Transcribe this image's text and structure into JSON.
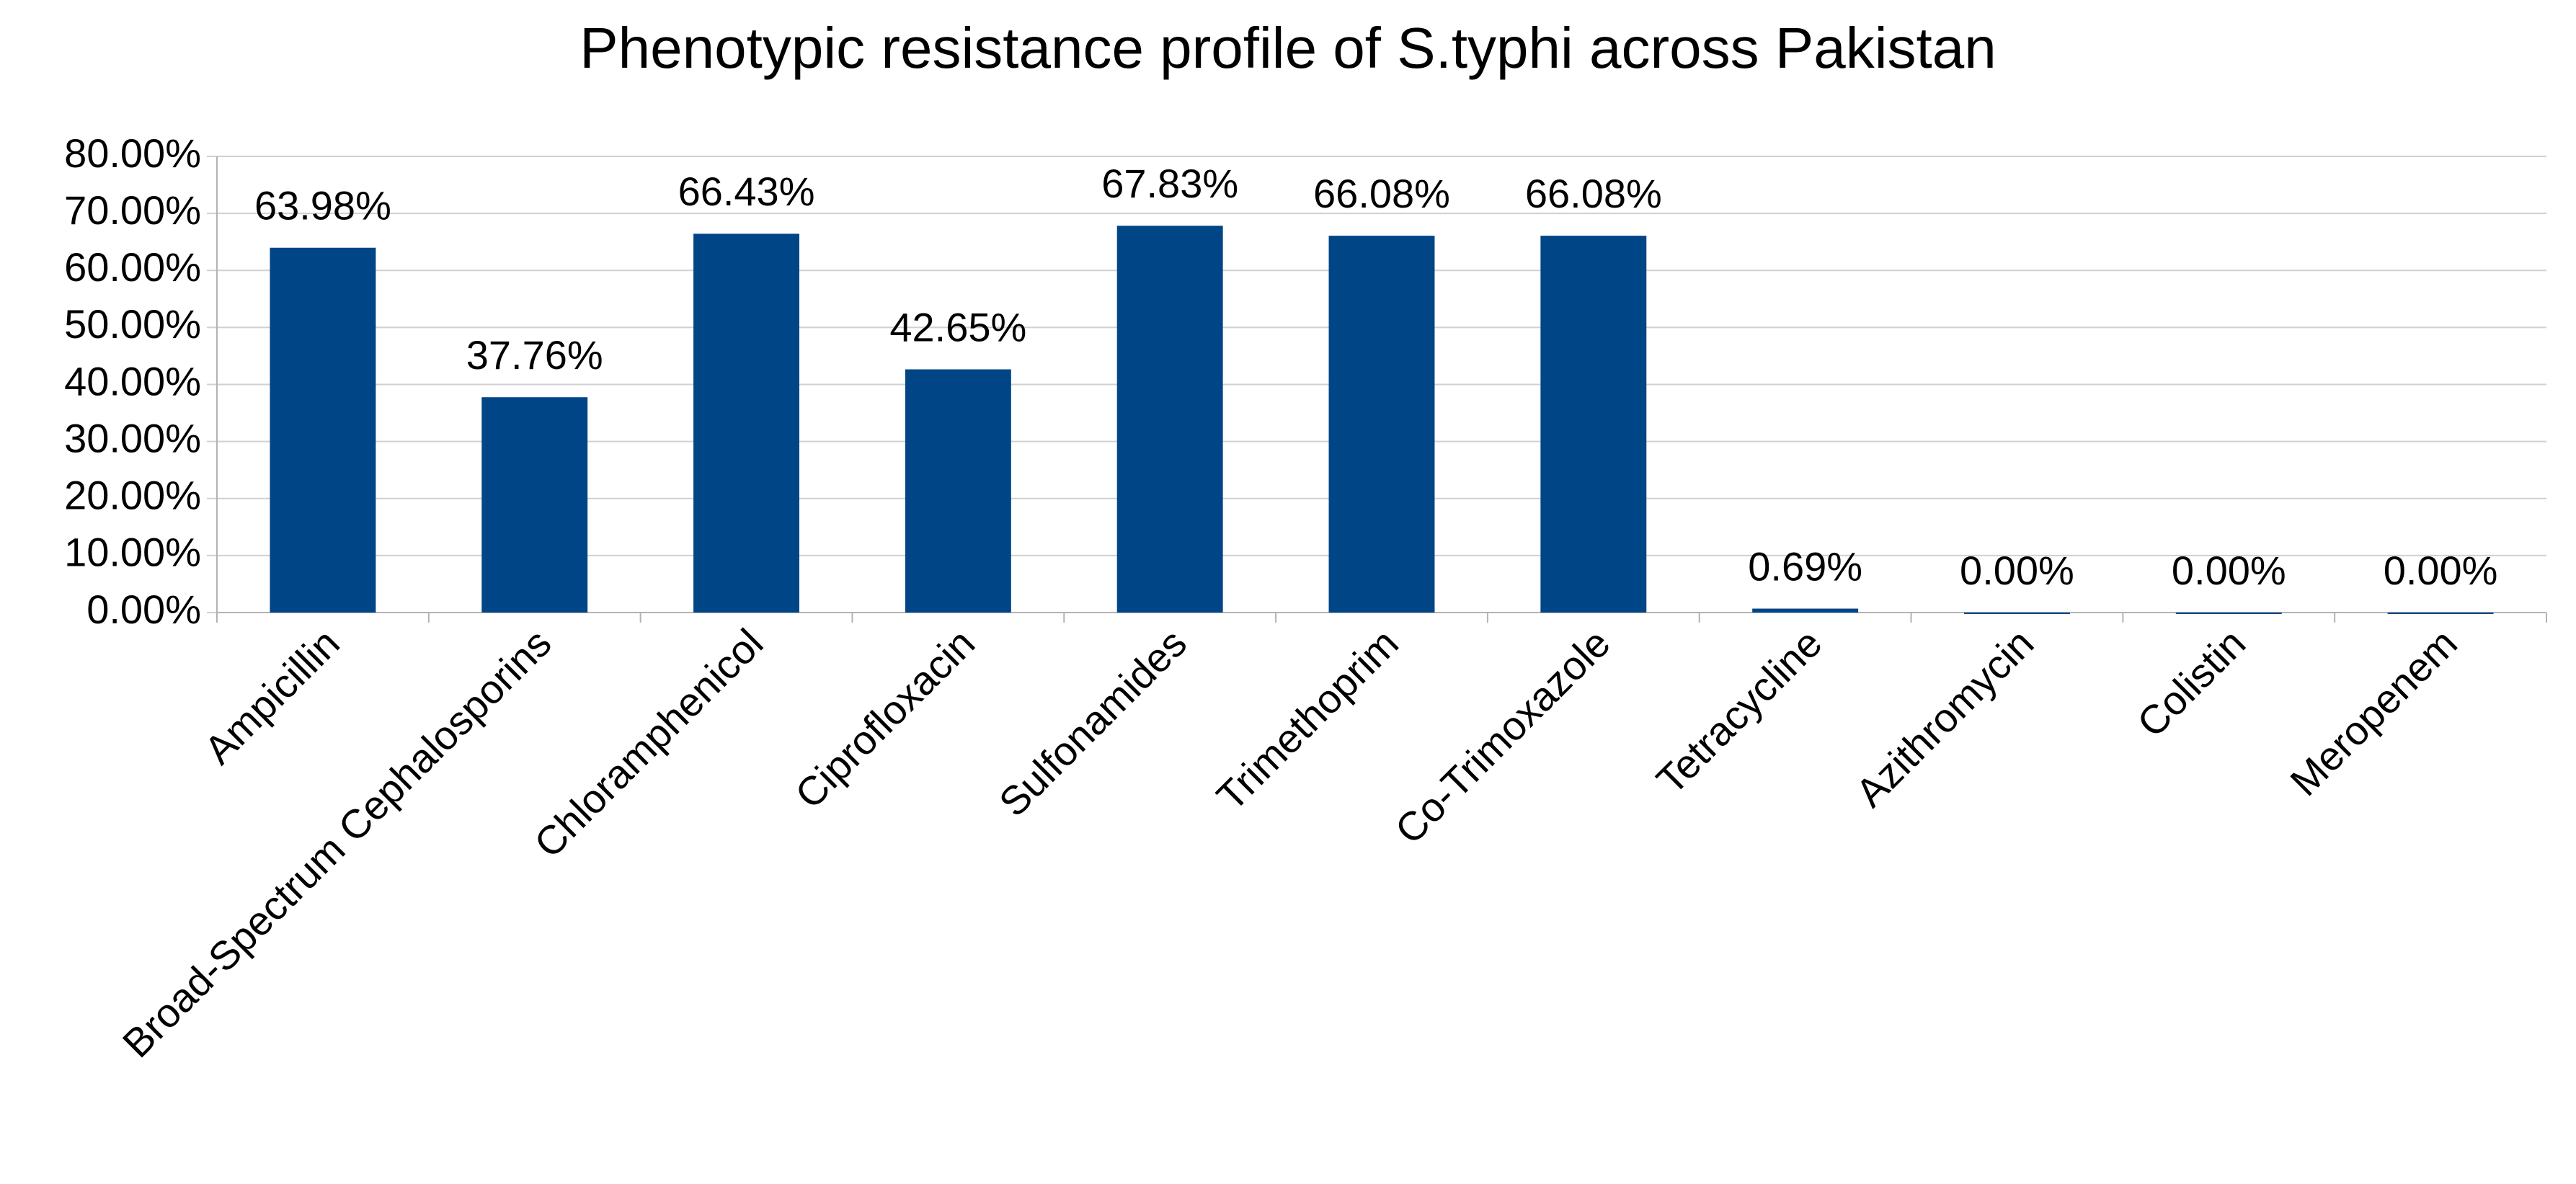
{
  "chart_data": {
    "type": "bar",
    "title": "Phenotypic resistance profile of S.typhi across Pakistan",
    "categories": [
      "Ampicillin",
      "Broad-Spectrum Cephalosporins",
      "Chloramphenicol",
      "Ciprofloxacin",
      "Sulfonamides",
      "Trimethoprim",
      "Co-Trimoxazole",
      "Tetracycline",
      "Azithromycin",
      "Colistin",
      "Meropenem"
    ],
    "values": [
      63.98,
      37.76,
      66.43,
      42.65,
      67.83,
      66.08,
      66.08,
      0.69,
      0,
      0,
      0
    ],
    "value_labels": [
      "63.98%",
      "37.76%",
      "66.43%",
      "42.65%",
      "67.83%",
      "66.08%",
      "66.08%",
      "0.69%",
      "0.00%",
      "0.00%",
      "0.00%"
    ],
    "color": "#004586",
    "ylim": [
      0,
      80
    ],
    "yticks": [
      {
        "value": 0,
        "label": "0.00%"
      },
      {
        "value": 10,
        "label": "10.00%"
      },
      {
        "value": 20,
        "label": "20.00%"
      },
      {
        "value": 30,
        "label": "30.00%"
      },
      {
        "value": 40,
        "label": "40.00%"
      },
      {
        "value": 50,
        "label": "50.00%"
      },
      {
        "value": 60,
        "label": "60.00%"
      },
      {
        "value": 70,
        "label": "70.00%"
      },
      {
        "value": 80,
        "label": "80.00%"
      }
    ],
    "grid": true
  }
}
